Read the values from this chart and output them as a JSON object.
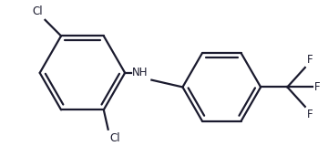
{
  "bg_color": "#ffffff",
  "line_color": "#1a1a2e",
  "line_width": 1.6,
  "font_size": 8.5,
  "fig_width": 3.6,
  "fig_height": 1.6,
  "dpi": 100,
  "labels": {
    "cl_top": "Cl",
    "cl_bot": "Cl",
    "nh": "NH",
    "f1": "F",
    "f2": "F",
    "f3": "F"
  }
}
